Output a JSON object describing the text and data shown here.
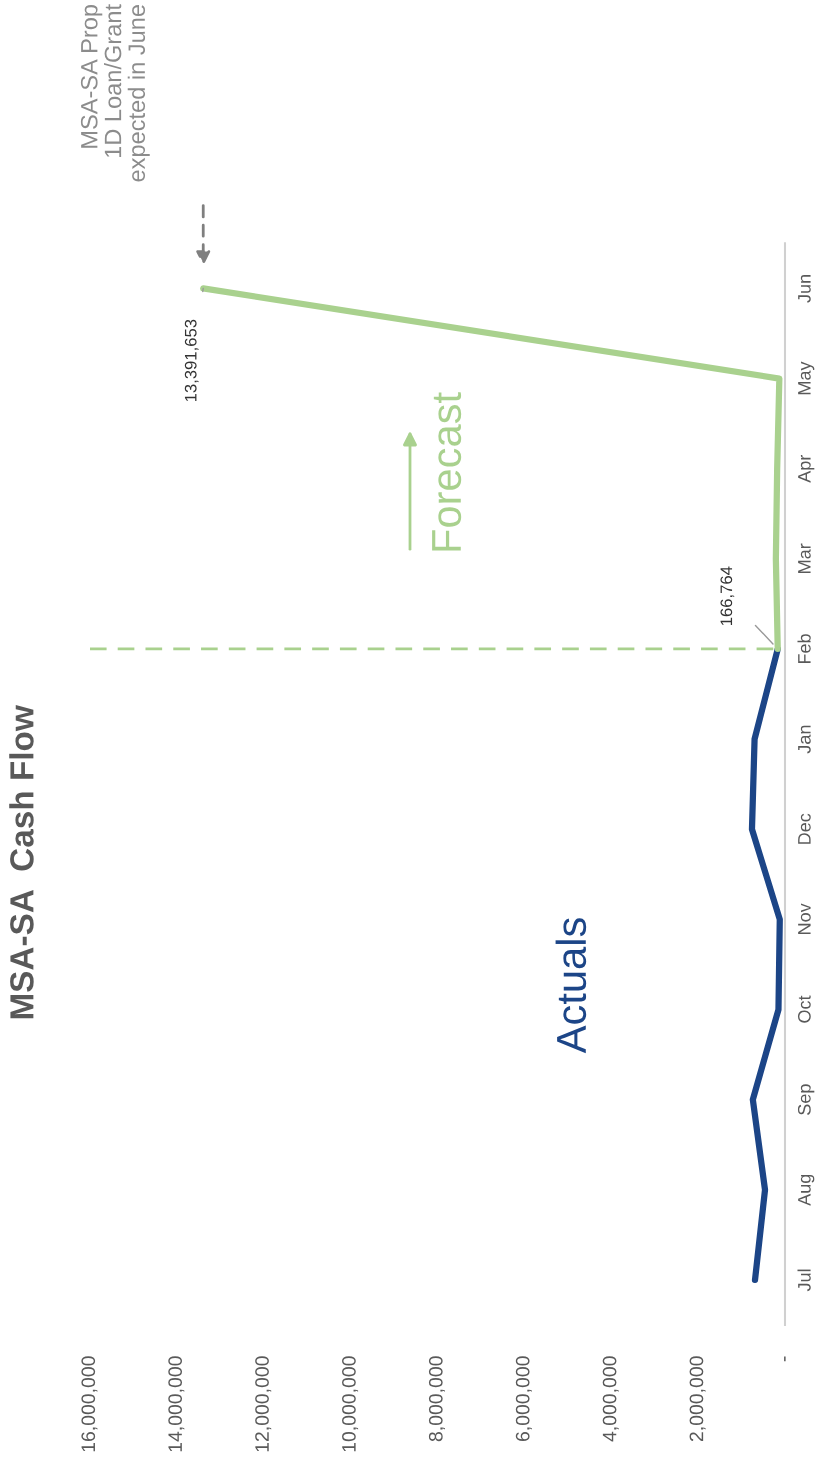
{
  "chart_data": {
    "type": "line",
    "title": "MSA-SA  Cash Flow",
    "orientation": "horizontal",
    "categories": [
      "Jun",
      "May",
      "Apr",
      "Mar",
      "Feb",
      "Jan",
      "Dec",
      "Nov",
      "Oct",
      "Sep",
      "Aug",
      "Jul"
    ],
    "series": [
      {
        "color": "#1c4587",
        "values": [
          null,
          null,
          null,
          null,
          166764,
          700000,
          760000,
          120000,
          150000,
          740000,
          460000,
          690000
        ]
      },
      {
        "color": "#a9d18e",
        "values": [
          13391653,
          130000,
          180000,
          210000,
          166764,
          null,
          null,
          null,
          null,
          null,
          null,
          null
        ],
        "value_labels": [
          "13,391,653",
          null,
          null,
          null,
          "166,764",
          null,
          null,
          null,
          null,
          null,
          null,
          null
        ]
      }
    ],
    "xlim": [
      16000000,
      0
    ],
    "xticks": [
      {
        "value": 16000000,
        "label": "16,000,000"
      },
      {
        "value": 14000000,
        "label": "14,000,000"
      },
      {
        "value": 12000000,
        "label": "12,000,000"
      },
      {
        "value": 10000000,
        "label": "10,000,000"
      },
      {
        "value": 8000000,
        "label": "8,000,000"
      },
      {
        "value": 6000000,
        "label": "6,000,000"
      },
      {
        "value": 4000000,
        "label": "4,000,000"
      },
      {
        "value": 2000000,
        "label": "2,000,000"
      },
      {
        "value": 0,
        "label": "-"
      }
    ],
    "ref_lines": [
      {
        "axis": "y",
        "value": "Feb",
        "color": "#a9d18e",
        "line_style": "dashed"
      }
    ],
    "annotations": [
      "MSA-SA Prop\n1D Loan/Grant\nexpected in June",
      "Actuals",
      "Forecast"
    ]
  }
}
